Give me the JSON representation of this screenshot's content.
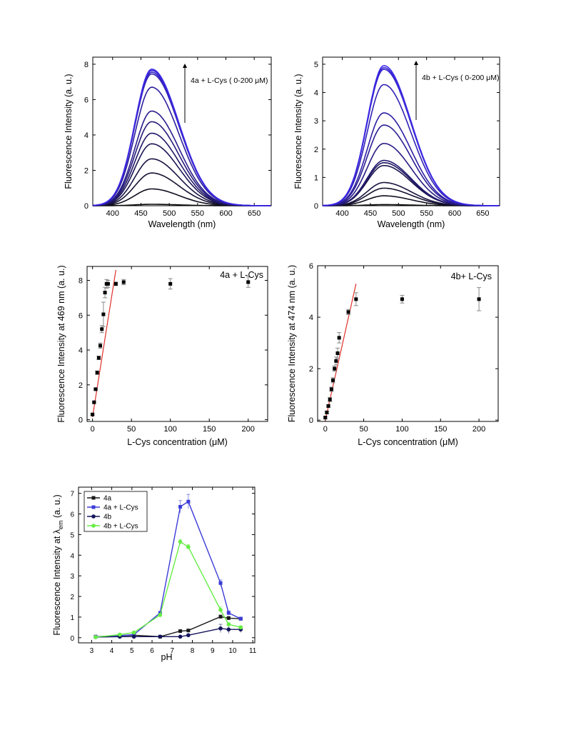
{
  "chart_data": [
    {
      "type": "line",
      "id": "spec4a",
      "xlabel": "Wavelength (nm)",
      "ylabel": "Fluorescence Intensity (a. u.)",
      "xlim": [
        365,
        680
      ],
      "ylim": [
        0,
        8.4
      ],
      "xticks": [
        400,
        450,
        500,
        550,
        600,
        650
      ],
      "yticks": [
        0,
        2,
        4,
        6,
        8
      ],
      "annotation": "4a + L-Cys ( 0-200 μM)",
      "peak_nm": 469,
      "width_left": 42,
      "width_right": 68,
      "peaks": [
        0.08,
        0.95,
        1.85,
        2.65,
        3.5,
        4.1,
        4.75,
        5.35,
        6.7,
        7.45,
        7.55,
        7.65,
        7.72
      ]
    },
    {
      "type": "line",
      "id": "spec4b",
      "xlabel": "Wavelength (nm)",
      "ylabel": "Fluorescence Intensity (a. u.)",
      "xlim": [
        365,
        680
      ],
      "ylim": [
        0,
        5.25
      ],
      "xticks": [
        400,
        450,
        500,
        550,
        600,
        650
      ],
      "yticks": [
        0,
        1,
        2,
        3,
        4,
        5
      ],
      "annotation": "4b + L-Cys ( 0-200 μM)",
      "peak_nm": 474,
      "width_left": 42,
      "width_right": 68,
      "peaks": [
        0.04,
        0.35,
        0.62,
        0.82,
        1.42,
        1.52,
        1.6,
        2.2,
        2.85,
        3.28,
        4.28,
        4.82,
        4.88,
        4.95
      ]
    },
    {
      "type": "scatter",
      "id": "lin4a",
      "xlabel": "L-Cys concentration (μM)",
      "ylabel": "Fluorescence Intensity at 469 nm (a. u.)",
      "legend": "4a + L-Cys",
      "xlim": [
        -7,
        225
      ],
      "ylim": [
        -0.1,
        8.8
      ],
      "xticks": [
        0,
        50,
        100,
        150,
        200
      ],
      "yticks": [
        0,
        2,
        4,
        6,
        8
      ],
      "x": [
        0,
        2,
        4,
        6,
        8,
        10,
        12,
        14,
        16,
        18,
        20,
        30,
        40,
        100,
        200
      ],
      "y": [
        0.3,
        1.0,
        1.75,
        2.7,
        3.55,
        4.25,
        5.2,
        6.05,
        7.3,
        7.8,
        7.8,
        7.8,
        7.9,
        7.8,
        7.9
      ],
      "err": [
        0.05,
        0.05,
        0.05,
        0.1,
        0.1,
        0.15,
        0.2,
        0.7,
        0.3,
        0.25,
        0.2,
        0.1,
        0.15,
        0.3,
        0.3
      ],
      "fit": [
        [
          0,
          0.15
        ],
        [
          30,
          8.6
        ]
      ]
    },
    {
      "type": "scatter",
      "id": "lin4b",
      "xlabel": "L-Cys concentration (μM)",
      "ylabel": "Fluorescence Intensity at 474 nm (a. u.)",
      "legend": "4b+ L-Cys",
      "xlim": [
        -10,
        225
      ],
      "ylim": [
        -0.05,
        6.0
      ],
      "xticks": [
        0,
        50,
        100,
        150,
        200
      ],
      "yticks": [
        0,
        2,
        4,
        6
      ],
      "x": [
        0,
        2,
        4,
        6,
        8,
        10,
        12,
        14,
        16,
        18,
        30,
        40,
        100,
        200
      ],
      "y": [
        0.1,
        0.3,
        0.55,
        0.8,
        1.2,
        1.55,
        2.0,
        2.3,
        2.6,
        3.2,
        4.2,
        4.7,
        4.7,
        4.7
      ],
      "err": [
        0.05,
        0.05,
        0.05,
        0.08,
        0.08,
        0.1,
        0.1,
        0.15,
        0.2,
        0.2,
        0.1,
        0.25,
        0.15,
        0.45
      ],
      "fit": [
        [
          0,
          0.0
        ],
        [
          40,
          5.3
        ]
      ]
    },
    {
      "type": "line",
      "id": "ph",
      "xlabel": "pH",
      "ylabel_main": "Fluorescence Intensity at ",
      "ylabel_lambda": "λ",
      "ylabel_sub": "em",
      "ylabel_tail": " (a. u.)",
      "xlim": [
        2.35,
        11.1
      ],
      "ylim": [
        -0.25,
        7.3
      ],
      "xticks": [
        3,
        4,
        5,
        6,
        7,
        8,
        9,
        10,
        11
      ],
      "yticks": [
        0,
        1,
        2,
        3,
        4,
        5,
        6,
        7
      ],
      "x": [
        3.2,
        4.4,
        5.1,
        6.4,
        7.4,
        7.8,
        9.4,
        9.8,
        10.4
      ],
      "series": [
        {
          "name": "4a",
          "color": "#1a1a1a",
          "marker": "square",
          "values": [
            0.05,
            0.1,
            0.12,
            0.05,
            0.32,
            0.35,
            1.02,
            0.95,
            0.92
          ],
          "err": [
            0.05,
            0.05,
            0.05,
            0.05,
            0.05,
            0.05,
            0.08,
            0.08,
            0.05
          ]
        },
        {
          "name": "4a + L-Cys",
          "color": "#3b3bd8",
          "marker": "square",
          "values": [
            0.05,
            0.1,
            0.15,
            1.2,
            6.35,
            6.6,
            2.65,
            1.2,
            0.92
          ],
          "err": [
            0.05,
            0.05,
            0.05,
            0.08,
            0.3,
            0.35,
            0.15,
            0.1,
            0.08
          ]
        },
        {
          "name": "4b",
          "color": "#15155c",
          "marker": "circle",
          "values": [
            0.03,
            0.05,
            0.05,
            0.05,
            0.05,
            0.12,
            0.45,
            0.4,
            0.4
          ],
          "err": [
            0.03,
            0.03,
            0.03,
            0.03,
            0.03,
            0.05,
            0.2,
            0.2,
            0.15
          ]
        },
        {
          "name": "4b + L-Cys",
          "color": "#66ee44",
          "marker": "circle",
          "values": [
            0.03,
            0.15,
            0.25,
            1.1,
            4.65,
            4.4,
            1.35,
            0.65,
            0.5
          ],
          "err": [
            0.03,
            0.05,
            0.05,
            0.08,
            0.12,
            0.12,
            0.15,
            0.08,
            0.08
          ]
        }
      ]
    }
  ]
}
